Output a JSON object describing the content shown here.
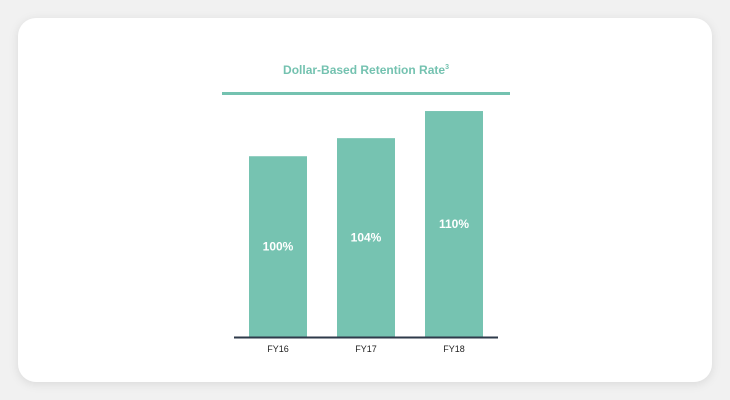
{
  "chart_data": {
    "type": "bar",
    "title": "Dollar-Based Retention Rate",
    "title_superscript": "3",
    "categories": [
      "FY16",
      "FY17",
      "FY18"
    ],
    "values": [
      100,
      104,
      110
    ],
    "value_labels": [
      "100%",
      "104%",
      "110%"
    ],
    "xlabel": "",
    "ylabel": "",
    "ylim": [
      60,
      112
    ],
    "grid": false,
    "legend": "none",
    "bar_color": "#76c3b1",
    "label_color": "#ffffff",
    "axis_color": "#2e3a4a",
    "title_color": "#74c2b0"
  }
}
